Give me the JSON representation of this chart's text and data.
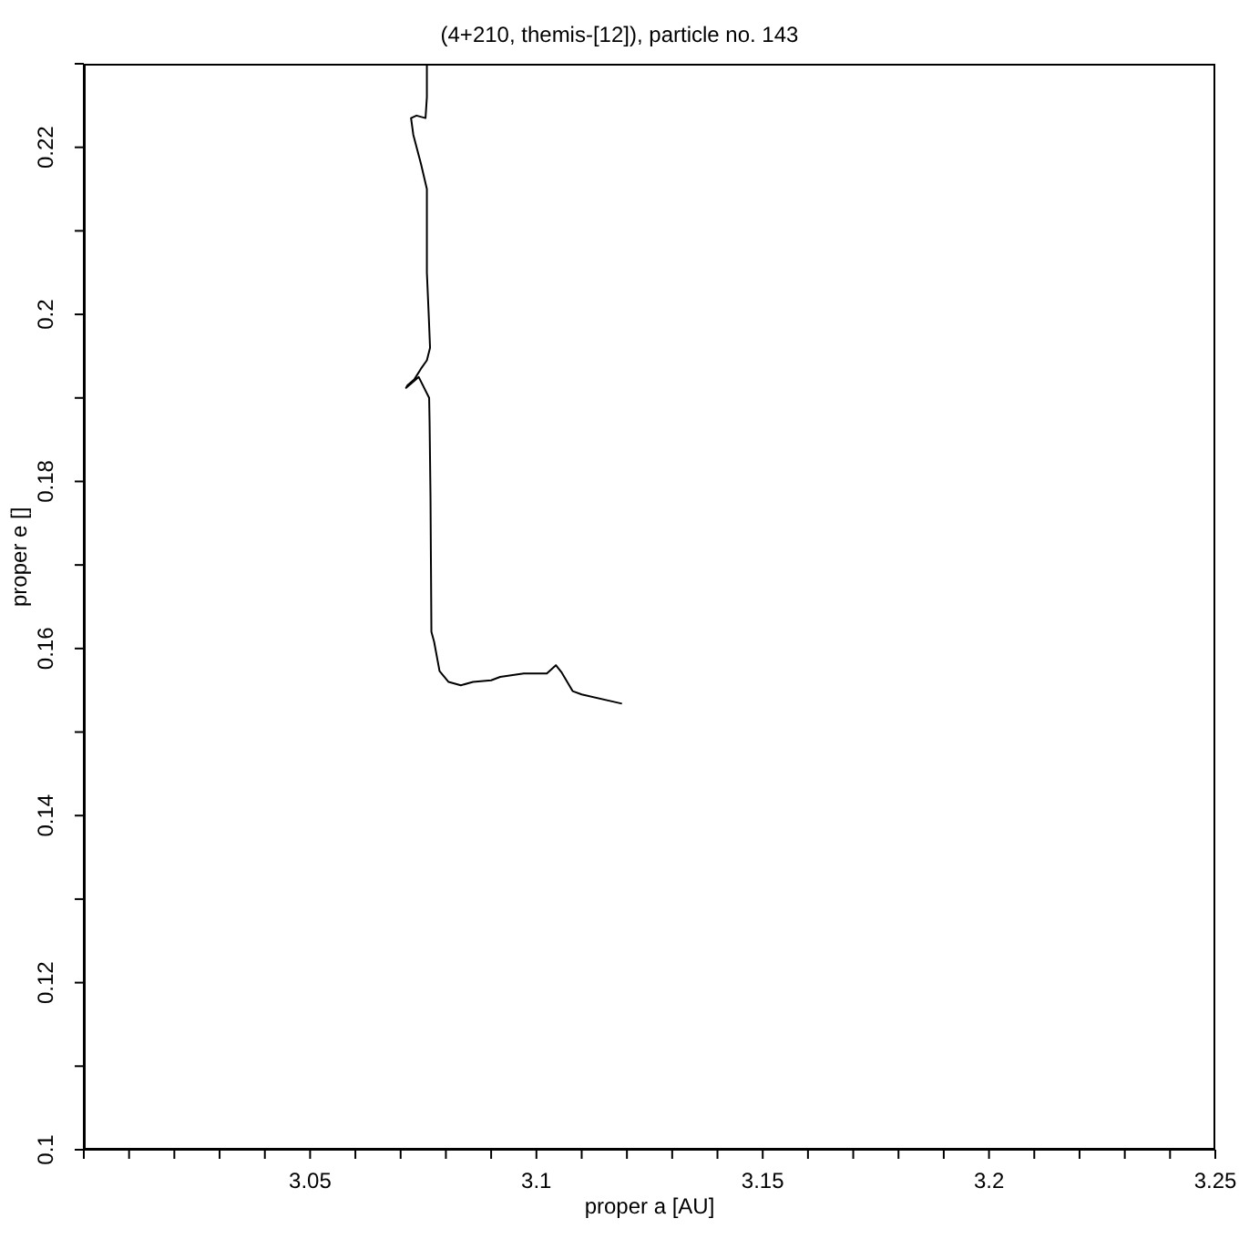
{
  "chart_data": {
    "type": "line",
    "title": "(4+210, themis-[12]), particle no. 143",
    "xlabel": "proper a [AU]",
    "ylabel": "proper e []",
    "xlim": [
      3.0,
      3.25
    ],
    "ylim": [
      0.1,
      0.23
    ],
    "xticks": [
      {
        "value": 3.0,
        "label": null
      },
      {
        "value": 3.01,
        "label": null
      },
      {
        "value": 3.02,
        "label": null
      },
      {
        "value": 3.03,
        "label": null
      },
      {
        "value": 3.04,
        "label": null
      },
      3.05,
      {
        "value": 3.06,
        "label": null
      },
      {
        "value": 3.07,
        "label": null
      },
      {
        "value": 3.08,
        "label": null
      },
      {
        "value": 3.09,
        "label": null
      },
      3.1,
      {
        "value": 3.11,
        "label": null
      },
      {
        "value": 3.12,
        "label": null
      },
      {
        "value": 3.13,
        "label": null
      },
      {
        "value": 3.14,
        "label": null
      },
      3.15,
      {
        "value": 3.16,
        "label": null
      },
      {
        "value": 3.17,
        "label": null
      },
      {
        "value": 3.18,
        "label": null
      },
      {
        "value": 3.19,
        "label": null
      },
      3.2,
      {
        "value": 3.21,
        "label": null
      },
      {
        "value": 3.22,
        "label": null
      },
      {
        "value": 3.23,
        "label": null
      },
      {
        "value": 3.24,
        "label": null
      },
      3.25
    ],
    "yticks": [
      0.1,
      {
        "value": 0.11,
        "label": null
      },
      0.12,
      {
        "value": 0.13,
        "label": null
      },
      0.14,
      {
        "value": 0.15,
        "label": null
      },
      0.16,
      {
        "value": 0.17,
        "label": null
      },
      0.18,
      {
        "value": 0.19,
        "label": null
      },
      0.2,
      {
        "value": 0.21,
        "label": null
      },
      0.22,
      {
        "value": 0.23,
        "label": null
      }
    ],
    "grid": false,
    "legend": false,
    "marker": "none",
    "line_style": "solid",
    "series": [
      {
        "color": "#000000",
        "x": [
          3.0758,
          3.0758,
          3.0755,
          3.0735,
          3.0723,
          3.0728,
          3.0745,
          3.0758,
          3.0758,
          3.0762,
          3.0765,
          3.0758,
          3.0745,
          3.073,
          3.0715,
          3.0712,
          3.0725,
          3.074,
          3.0763,
          3.0764,
          3.0766,
          3.0767,
          3.0768,
          3.0774,
          3.0786,
          3.0806,
          3.0833,
          3.086,
          3.09,
          3.092,
          3.0972,
          3.1023,
          3.1043,
          3.1055,
          3.108,
          3.11,
          3.1189
        ],
        "values": [
          0.23,
          0.226,
          0.2235,
          0.2238,
          0.2235,
          0.2215,
          0.218,
          0.215,
          0.205,
          0.2,
          0.196,
          0.1945,
          0.1935,
          0.1922,
          0.1915,
          0.1912,
          0.1918,
          0.1925,
          0.19,
          0.187,
          0.178,
          0.17,
          0.162,
          0.1608,
          0.1573,
          0.156,
          0.1556,
          0.156,
          0.1562,
          0.1566,
          0.157,
          0.157,
          0.158,
          0.1572,
          0.1549,
          0.1545,
          0.1534
        ]
      }
    ]
  }
}
